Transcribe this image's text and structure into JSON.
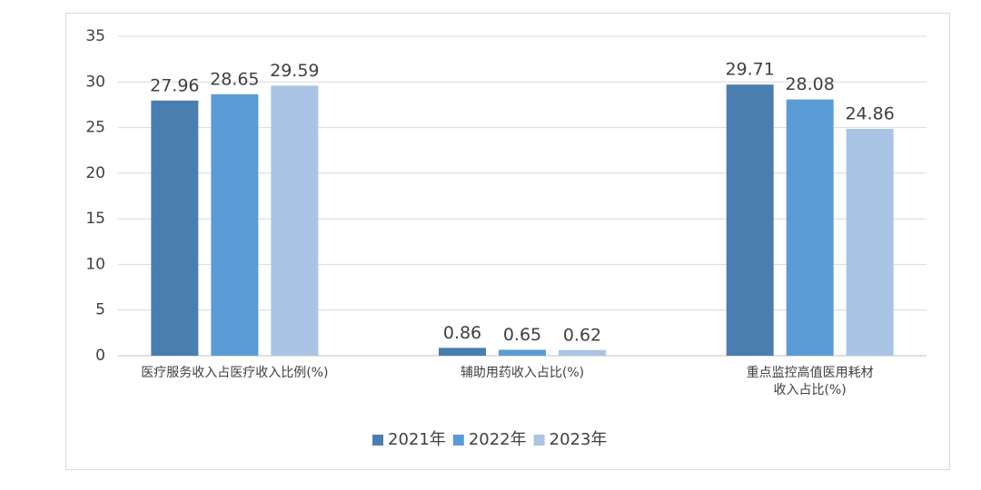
{
  "chart_data": {
    "type": "bar",
    "categories": [
      "医疗服务收入占医疗收入比例(%)",
      "辅助用药收入占比(%)",
      "重点监控高值医用耗材收入占比(%)"
    ],
    "series": [
      {
        "name": "2021年",
        "color": "#4a7eb0",
        "values": [
          27.96,
          0.86,
          29.71
        ]
      },
      {
        "name": "2022年",
        "color": "#5b9bd5",
        "values": [
          28.65,
          0.65,
          28.08
        ]
      },
      {
        "name": "2023年",
        "color": "#a9c4e4",
        "values": [
          29.59,
          0.62,
          24.86
        ]
      }
    ],
    "ylim": [
      0,
      35
    ],
    "yticks": [
      0,
      5,
      10,
      15,
      20,
      25,
      30,
      35
    ],
    "grid": true,
    "legend": "bottom"
  }
}
